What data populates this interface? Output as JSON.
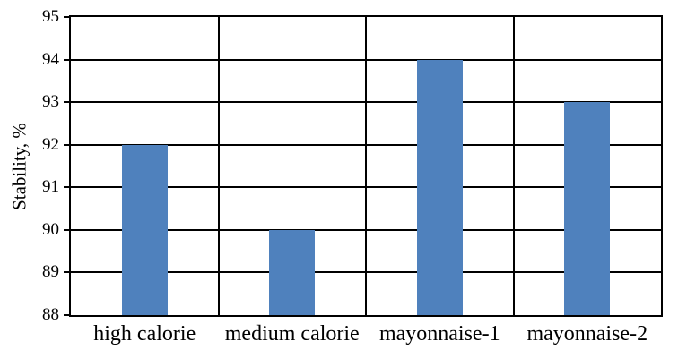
{
  "chart_data": {
    "type": "bar",
    "title": "",
    "xlabel": "",
    "ylabel": "Stability, %",
    "categories": [
      "high calorie",
      "medium calorie",
      "mayonnaise-1",
      "mayonnaise-2"
    ],
    "values": [
      92,
      90,
      94,
      93
    ],
    "ylim": [
      88,
      95
    ],
    "ytick_interval": 1,
    "yticks": [
      88,
      89,
      90,
      91,
      92,
      93,
      94,
      95
    ],
    "legend": "none",
    "grid": {
      "horizontal_major": true,
      "vertical_category_separators": true
    },
    "colors": {
      "bar_fill": "#4F81BD",
      "axis_and_grid": "#000000",
      "text": "#000000",
      "background": "#FFFFFF"
    }
  }
}
